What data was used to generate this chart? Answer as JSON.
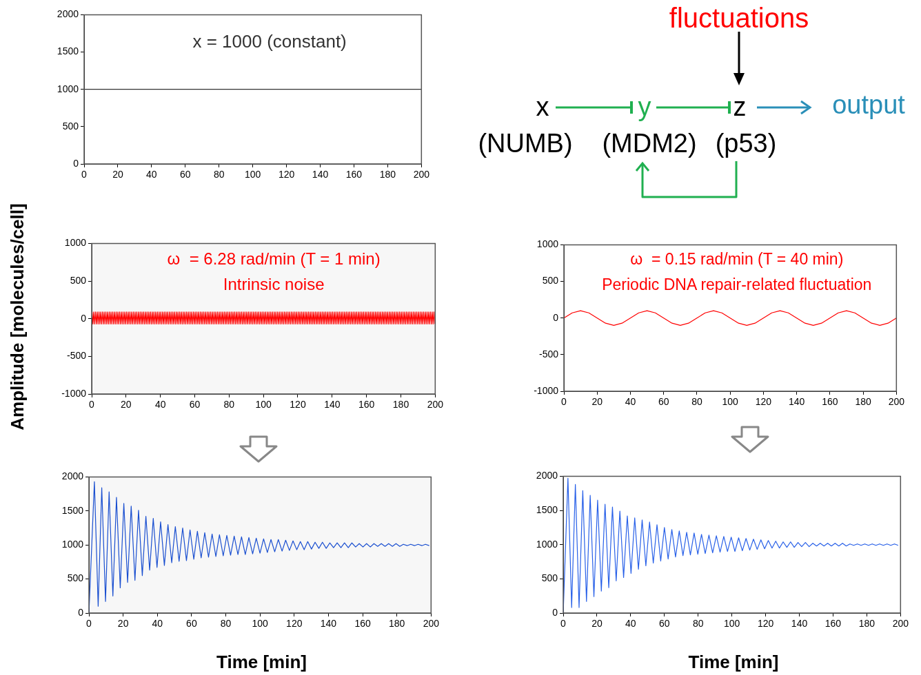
{
  "chart_data": [
    {
      "type": "line",
      "annotations": [
        "x = 1000 (constant)"
      ],
      "x": [
        0,
        200
      ],
      "xlim": [
        0,
        200
      ],
      "ylim": [
        0,
        2000
      ],
      "xticks": [
        0,
        20,
        40,
        60,
        80,
        100,
        120,
        140,
        160,
        180,
        200
      ],
      "yticks": [
        0,
        500,
        1000,
        1500,
        2000
      ],
      "grid": false,
      "series": [
        {
          "color": "#333333",
          "values": [
            1000,
            1000
          ]
        }
      ]
    },
    {
      "type": "other",
      "annotations": [
        "fluctuations",
        "x",
        "y",
        "z",
        "output",
        "(NUMB)",
        "(MDM2)",
        "(p53)"
      ]
    },
    {
      "type": "line",
      "ylabel": "Amplitude [molecules/cell]",
      "annotations": [
        "ω  = 6.28 rad/min (T = 1 min)",
        "Intrinsic noise"
      ],
      "xlim": [
        0,
        200
      ],
      "ylim": [
        -1000,
        1000
      ],
      "xticks": [
        0,
        20,
        40,
        60,
        80,
        100,
        120,
        140,
        160,
        180,
        200
      ],
      "yticks": [
        -1000,
        -500,
        0,
        500,
        1000
      ],
      "grid": false,
      "x": [
        0.25,
        0.75,
        1.25,
        1.75,
        2.25,
        2.75,
        3.25,
        3.75,
        4.25,
        4.75,
        5.25,
        5.75,
        6.25,
        6.75,
        7.25,
        7.75,
        8.25,
        8.75,
        9.25,
        9.75,
        10.25,
        10.75,
        11.25,
        11.75,
        12.25,
        12.75,
        13.25,
        13.75,
        14.25,
        14.75,
        15.25,
        15.75,
        16.25,
        16.75,
        17.25,
        17.75,
        18.25,
        18.75,
        19.25,
        19.75,
        20.25,
        20.75,
        21.25,
        21.75,
        22.25,
        22.75,
        23.25,
        23.75,
        24.25,
        24.75,
        25.25,
        25.75,
        26.25,
        26.75,
        27.25,
        27.75,
        28.25,
        28.75,
        29.25,
        29.75,
        30.25,
        30.75,
        31.25,
        31.75,
        32.25,
        32.75,
        33.25,
        33.75,
        34.25,
        34.75,
        35.25,
        35.75,
        36.25,
        36.75,
        37.25,
        37.75,
        38.25,
        38.75,
        39.25,
        39.75,
        40.25,
        40.75,
        41.25,
        41.75,
        42.25,
        42.75,
        43.25,
        43.75,
        44.25,
        44.75,
        45.25,
        45.75,
        46.25,
        46.75,
        47.25,
        47.75,
        48.25,
        48.75,
        49.25,
        49.75,
        50.25,
        50.75,
        51.25,
        51.75,
        52.25,
        52.75,
        53.25,
        53.75,
        54.25,
        54.75,
        55.25,
        55.75,
        56.25,
        56.75,
        57.25,
        57.75,
        58.25,
        58.75,
        59.25,
        59.75,
        60.25,
        60.75,
        61.25,
        61.75,
        62.25,
        62.75,
        63.25,
        63.75,
        64.25,
        64.75,
        65.25,
        65.75,
        66.25,
        66.75,
        67.25,
        67.75,
        68.25,
        68.75,
        69.25,
        69.75,
        70.25,
        70.75,
        71.25,
        71.75,
        72.25,
        72.75,
        73.25,
        73.75,
        74.25,
        74.75,
        75.25,
        75.75,
        76.25,
        76.75,
        77.25,
        77.75,
        78.25,
        78.75,
        79.25,
        79.75,
        80.25,
        80.75,
        81.25,
        81.75,
        82.25,
        82.75,
        83.25,
        83.75,
        84.25,
        84.75,
        85.25,
        85.75,
        86.25,
        86.75,
        87.25,
        87.75,
        88.25,
        88.75,
        89.25,
        89.75,
        90.25,
        90.75,
        91.25,
        91.75,
        92.25,
        92.75,
        93.25,
        93.75,
        94.25,
        94.75,
        95.25,
        95.75,
        96.25,
        96.75,
        97.25,
        97.75,
        98.25,
        98.75,
        99.25,
        99.75,
        100.25,
        100.75,
        101.25,
        101.75,
        102.25,
        102.75,
        103.25,
        103.75,
        104.25,
        104.75,
        105.25,
        105.75,
        106.25,
        106.75,
        107.25,
        107.75,
        108.25,
        108.75,
        109.25,
        109.75,
        110.25,
        110.75,
        111.25,
        111.75,
        112.25,
        112.75,
        113.25,
        113.75,
        114.25,
        114.75,
        115.25,
        115.75,
        116.25,
        116.75,
        117.25,
        117.75,
        118.25,
        118.75,
        119.25,
        119.75,
        120.25,
        120.75,
        121.25,
        121.75,
        122.25,
        122.75,
        123.25,
        123.75,
        124.25,
        124.75,
        125.25,
        125.75,
        126.25,
        126.75,
        127.25,
        127.75,
        128.25,
        128.75,
        129.25,
        129.75,
        130.25,
        130.75,
        131.25,
        131.75,
        132.25,
        132.75,
        133.25,
        133.75,
        134.25,
        134.75,
        135.25,
        135.75,
        136.25,
        136.75,
        137.25,
        137.75,
        138.25,
        138.75,
        139.25,
        139.75,
        140.25,
        140.75,
        141.25,
        141.75,
        142.25,
        142.75,
        143.25,
        143.75,
        144.25,
        144.75,
        145.25,
        145.75,
        146.25,
        146.75,
        147.25,
        147.75,
        148.25,
        148.75,
        149.25,
        149.75,
        150.25,
        150.75,
        151.25,
        151.75,
        152.25,
        152.75,
        153.25,
        153.75,
        154.25,
        154.75,
        155.25,
        155.75,
        156.25,
        156.75,
        157.25,
        157.75,
        158.25,
        158.75,
        159.25,
        159.75,
        160.25,
        160.75,
        161.25,
        161.75,
        162.25,
        162.75,
        163.25,
        163.75,
        164.25,
        164.75,
        165.25,
        165.75,
        166.25,
        166.75,
        167.25,
        167.75,
        168.25,
        168.75,
        169.25,
        169.75,
        170.25,
        170.75,
        171.25,
        171.75,
        172.25,
        172.75,
        173.25,
        173.75,
        174.25,
        174.75,
        175.25,
        175.75,
        176.25,
        176.75,
        177.25,
        177.75,
        178.25,
        178.75,
        179.25,
        179.75,
        180.25,
        180.75,
        181.25,
        181.75,
        182.25,
        182.75,
        183.25,
        183.75,
        184.25,
        184.75,
        185.25,
        185.75,
        186.25,
        186.75,
        187.25,
        187.75,
        188.25,
        188.75,
        189.25,
        189.75,
        190.25,
        190.75,
        191.25,
        191.75,
        192.25,
        192.75,
        193.25,
        193.75,
        194.25,
        194.75,
        195.25,
        195.75,
        196.25,
        196.75,
        197.25,
        197.75,
        198.25,
        198.75,
        199.25,
        199.75
      ],
      "series": [
        {
          "color": "#ff0000",
          "values": [
            90,
            -70,
            90,
            -70,
            90,
            -70,
            90,
            -70,
            90,
            -70,
            90,
            -70,
            90,
            -70,
            90,
            -70,
            90,
            -70,
            90,
            -70,
            90,
            -70,
            90,
            -70,
            90,
            -70,
            90,
            -70,
            90,
            -70,
            90,
            -70,
            90,
            -70,
            90,
            -70,
            90,
            -70,
            90,
            -70,
            90,
            -70,
            90,
            -70,
            90,
            -70,
            90,
            -70,
            90,
            -70,
            90,
            -70,
            90,
            -70,
            90,
            -70,
            90,
            -70,
            90,
            -70,
            90,
            -70,
            90,
            -70,
            90,
            -70,
            90,
            -70,
            90,
            -70,
            90,
            -70,
            90,
            -70,
            90,
            -70,
            90,
            -70,
            90,
            -70,
            90,
            -70,
            90,
            -70,
            90,
            -70,
            90,
            -70,
            90,
            -70,
            90,
            -70,
            90,
            -70,
            90,
            -70,
            90,
            -70,
            90,
            -70,
            90,
            -70,
            90,
            -70,
            90,
            -70,
            90,
            -70,
            90,
            -70,
            90,
            -70,
            90,
            -70,
            90,
            -70,
            90,
            -70,
            90,
            -70,
            90,
            -70,
            90,
            -70,
            90,
            -70,
            90,
            -70,
            90,
            -70,
            90,
            -70,
            90,
            -70,
            90,
            -70,
            90,
            -70,
            90,
            -70,
            90,
            -70,
            90,
            -70,
            90,
            -70,
            90,
            -70,
            90,
            -70,
            90,
            -70,
            90,
            -70,
            90,
            -70,
            90,
            -70,
            90,
            -70,
            90,
            -70,
            90,
            -70,
            90,
            -70,
            90,
            -70,
            90,
            -70,
            90,
            -70,
            90,
            -70,
            90,
            -70,
            90,
            -70,
            90,
            -70,
            90,
            -70,
            90,
            -70,
            90,
            -70,
            90,
            -70,
            90,
            -70,
            90,
            -70,
            90,
            -70,
            90,
            -70,
            90,
            -70,
            90,
            -70,
            90,
            -70,
            90,
            -70,
            90,
            -70,
            90,
            -70,
            90,
            -70,
            90,
            -70,
            90,
            -70,
            90,
            -70,
            90,
            -70,
            90,
            -70,
            90,
            -70,
            90,
            -70,
            90,
            -70,
            90,
            -70,
            90,
            -70,
            90,
            -70,
            90,
            -70,
            90,
            -70,
            90,
            -70,
            90,
            -70,
            90,
            -70,
            90,
            -70,
            90,
            -70,
            90,
            -70,
            90,
            -70,
            90,
            -70,
            90,
            -70,
            90,
            -70,
            90,
            -70,
            90,
            -70,
            90,
            -70,
            90,
            -70,
            90,
            -70,
            90,
            -70,
            90,
            -70,
            90,
            -70,
            90,
            -70,
            90,
            -70,
            90,
            -70,
            90,
            -70,
            90,
            -70,
            90,
            -70,
            90,
            -70,
            90,
            -70,
            90,
            -70,
            90,
            -70,
            90,
            -70,
            90,
            -70,
            90,
            -70,
            90,
            -70,
            90,
            -70,
            90,
            -70,
            90,
            -70,
            90,
            -70,
            90,
            -70,
            90,
            -70,
            90,
            -70,
            90,
            -70,
            90,
            -70,
            90,
            -70,
            90,
            -70,
            90,
            -70,
            90,
            -70,
            90,
            -70,
            90,
            -70,
            90,
            -70,
            90,
            -70,
            90,
            -70,
            90,
            -70,
            90,
            -70,
            90,
            -70,
            90,
            -70,
            90,
            -70,
            90,
            -70,
            90,
            -70,
            90,
            -70,
            90,
            -70,
            90,
            -70,
            90,
            -70,
            90,
            -70,
            90,
            -70,
            90,
            -70,
            90,
            -70,
            90,
            -70,
            90,
            -70,
            90,
            -70,
            90,
            -70,
            90,
            -70,
            90,
            -70,
            90,
            -70,
            90,
            -70,
            90,
            -70,
            90,
            -70,
            90,
            -70,
            90,
            -70,
            90,
            -70,
            90,
            -70,
            90,
            -70,
            90,
            -70,
            90,
            -70
          ]
        }
      ]
    },
    {
      "type": "line",
      "annotations": [
        "ω  = 0.15 rad/min (T = 40 min)",
        "Periodic DNA repair-related fluctuation"
      ],
      "xlim": [
        0,
        200
      ],
      "ylim": [
        -1000,
        1000
      ],
      "xticks": [
        0,
        20,
        40,
        60,
        80,
        100,
        120,
        140,
        160,
        180,
        200
      ],
      "yticks": [
        -1000,
        -500,
        0,
        500,
        1000
      ],
      "grid": false,
      "x": [
        0,
        5,
        10,
        15,
        20,
        25,
        30,
        35,
        40,
        45,
        50,
        55,
        60,
        65,
        70,
        75,
        80,
        85,
        90,
        95,
        100,
        105,
        110,
        115,
        120,
        125,
        130,
        135,
        140,
        145,
        150,
        155,
        160,
        165,
        170,
        175,
        180,
        185,
        190,
        195,
        200
      ],
      "series": [
        {
          "color": "#ff0000",
          "values": [
            0,
            70,
            100,
            70,
            0,
            -70,
            -100,
            -70,
            0,
            70,
            100,
            70,
            0,
            -70,
            -100,
            -70,
            0,
            70,
            100,
            70,
            0,
            -70,
            -100,
            -70,
            0,
            70,
            100,
            70,
            0,
            -70,
            -100,
            -70,
            0,
            70,
            100,
            70,
            0,
            -70,
            -100,
            -70,
            0
          ]
        }
      ]
    },
    {
      "type": "line",
      "xlabel": "Time [min]",
      "xlim": [
        0,
        200
      ],
      "ylim": [
        0,
        2000
      ],
      "xticks": [
        0,
        20,
        40,
        60,
        80,
        100,
        120,
        140,
        160,
        180,
        200
      ],
      "yticks": [
        0,
        500,
        1000,
        1500,
        2000
      ],
      "grid": false,
      "x": [
        0,
        3.2,
        5.4,
        7.5,
        9.7,
        11.8,
        14.0,
        16.1,
        18.3,
        20.4,
        22.6,
        24.7,
        26.9,
        29.0,
        31.2,
        33.3,
        35.5,
        37.6,
        39.8,
        41.9,
        44.1,
        46.2,
        48.4,
        50.5,
        52.7,
        54.8,
        57.0,
        59.1,
        61.3,
        63.4,
        65.6,
        67.7,
        69.9,
        72.0,
        74.2,
        76.3,
        78.5,
        80.6,
        82.8,
        84.9,
        87.1,
        89.2,
        91.4,
        93.5,
        95.7,
        97.8,
        100.0,
        102.1,
        104.3,
        106.4,
        108.6,
        110.7,
        112.9,
        115.0,
        117.2,
        119.3,
        121.5,
        123.6,
        125.8,
        127.9,
        130.1,
        132.2,
        134.4,
        136.5,
        138.7,
        140.8,
        143.0,
        145.1,
        147.3,
        149.4,
        151.6,
        153.7,
        155.9,
        158.0,
        160.2,
        162.3,
        164.5,
        166.6,
        168.8,
        170.9,
        173.1,
        175.2,
        177.4,
        179.5,
        181.7,
        183.8,
        186.0,
        188.1,
        190.3,
        192.4,
        194.6,
        196.7,
        198.9
      ],
      "series": [
        {
          "color": "#1a4fd0",
          "values": [
            0,
            1930,
            100,
            1840,
            170,
            1780,
            250,
            1700,
            370,
            1610,
            450,
            1570,
            480,
            1510,
            550,
            1420,
            630,
            1390,
            670,
            1340,
            700,
            1300,
            740,
            1270,
            760,
            1250,
            770,
            1220,
            790,
            1200,
            810,
            1180,
            820,
            1160,
            830,
            1150,
            840,
            1140,
            850,
            1130,
            860,
            1120,
            860,
            1110,
            870,
            1100,
            880,
            1090,
            890,
            1080,
            900,
            1080,
            910,
            1070,
            920,
            1060,
            930,
            1050,
            930,
            1050,
            940,
            1040,
            950,
            1040,
            950,
            1030,
            960,
            1030,
            960,
            1030,
            960,
            1030,
            970,
            1020,
            970,
            1020,
            970,
            1020,
            980,
            1020,
            980,
            1020,
            980,
            1020,
            980,
            1010,
            990,
            1010,
            990,
            1010,
            990,
            1010,
            990
          ]
        }
      ]
    },
    {
      "type": "line",
      "xlabel": "Time [min]",
      "xlim": [
        0,
        200
      ],
      "ylim": [
        0,
        2000
      ],
      "xticks": [
        0,
        20,
        40,
        60,
        80,
        100,
        120,
        140,
        160,
        180,
        200
      ],
      "yticks": [
        0,
        500,
        1000,
        1500,
        2000
      ],
      "grid": false,
      "x": [
        0,
        2.8,
        5.0,
        7.2,
        9.4,
        11.6,
        13.8,
        16.0,
        18.2,
        20.4,
        22.6,
        24.8,
        27.0,
        29.2,
        31.4,
        33.6,
        35.8,
        38.0,
        40.2,
        42.4,
        44.6,
        46.8,
        49.0,
        51.2,
        53.4,
        55.6,
        57.8,
        60.0,
        62.2,
        64.4,
        66.6,
        68.8,
        71.0,
        73.2,
        75.4,
        77.6,
        79.8,
        82.0,
        84.2,
        86.4,
        88.6,
        90.8,
        93.0,
        95.2,
        97.4,
        99.6,
        101.8,
        104.0,
        106.2,
        108.4,
        110.6,
        112.8,
        115.0,
        117.2,
        119.4,
        121.6,
        123.8,
        126.0,
        128.2,
        130.4,
        132.6,
        134.8,
        137.0,
        139.2,
        141.4,
        143.6,
        145.8,
        148.0,
        150.2,
        152.4,
        154.6,
        156.8,
        159.0,
        161.2,
        163.4,
        165.6,
        167.8,
        170.0,
        172.2,
        174.4,
        176.6,
        178.8,
        181.0,
        183.2,
        185.4,
        187.6,
        189.8,
        192.0,
        194.2,
        196.4,
        198.6
      ],
      "series": [
        {
          "color": "#2860e8",
          "values": [
            0,
            1970,
            80,
            1880,
            80,
            1790,
            170,
            1720,
            240,
            1650,
            320,
            1590,
            370,
            1550,
            470,
            1490,
            520,
            1420,
            580,
            1390,
            640,
            1360,
            690,
            1330,
            730,
            1290,
            760,
            1250,
            790,
            1220,
            820,
            1200,
            840,
            1180,
            850,
            1170,
            860,
            1150,
            870,
            1140,
            880,
            1130,
            890,
            1120,
            900,
            1110,
            900,
            1100,
            910,
            1090,
            920,
            1080,
            930,
            1070,
            940,
            1060,
            950,
            1050,
            950,
            1040,
            960,
            1040,
            960,
            1030,
            970,
            1030,
            970,
            1020,
            980,
            1020,
            980,
            1020,
            980,
            1020,
            980,
            1020,
            980,
            1010,
            990,
            1010,
            990,
            1010,
            990,
            1010,
            990,
            1010,
            990,
            1010,
            990,
            1010,
            990
          ]
        }
      ]
    }
  ]
}
